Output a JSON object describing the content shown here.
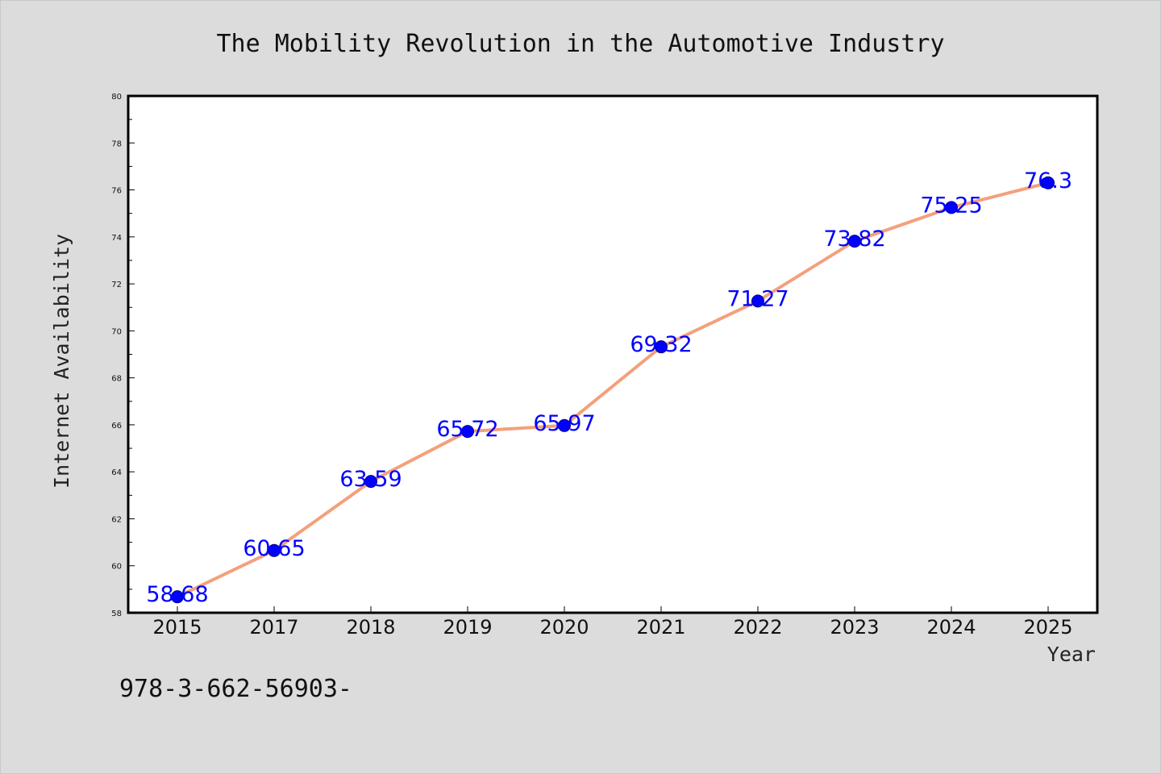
{
  "colors": {
    "background": "#dcdcdc",
    "plot_area": "#ffffff",
    "line": "#f4a07c",
    "marker": "#0000ff",
    "data_label": "#0000ff",
    "axis": "#000000"
  },
  "chart_data": {
    "type": "line",
    "title": "The Mobility Revolution in the Automotive Industry",
    "xlabel": "Year",
    "ylabel": "Internet Availability",
    "categories": [
      "2015",
      "2017",
      "2018",
      "2019",
      "2020",
      "2021",
      "2022",
      "2023",
      "2024",
      "2025"
    ],
    "series": [
      {
        "values": [
          58.68,
          60.65,
          63.59,
          65.72,
          65.97,
          69.32,
          71.27,
          73.82,
          75.25,
          76.3
        ],
        "labels": [
          "58.68",
          "60.65",
          "63.59",
          "65.72",
          "65.97",
          "69.32",
          "71.27",
          "73.82",
          "75.25",
          "76.3"
        ]
      }
    ],
    "ylim": [
      58,
      80
    ],
    "yticks": [
      "58",
      "60",
      "62",
      "64",
      "66",
      "68",
      "70",
      "72",
      "74",
      "76",
      "78",
      "80"
    ],
    "grid": false,
    "legend": "none"
  },
  "footer_text": "978-3-662-56903-"
}
